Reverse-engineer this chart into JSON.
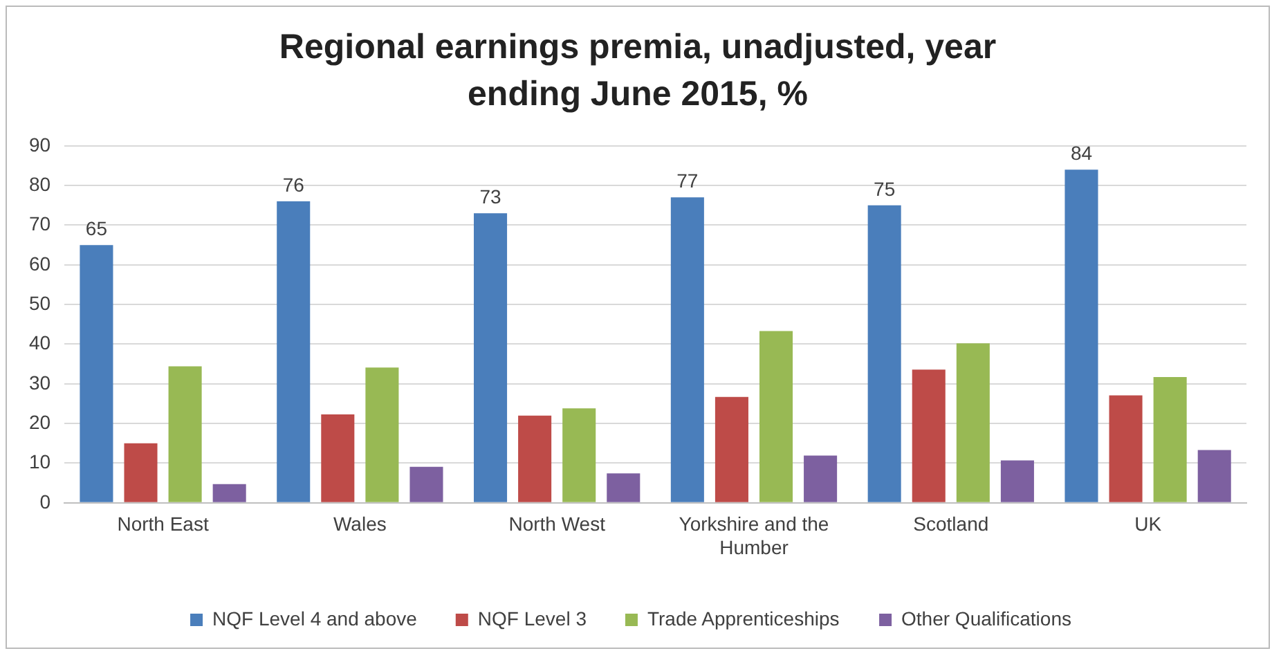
{
  "chart_data": {
    "type": "bar",
    "title": "Regional earnings premia, unadjusted, year ending June 2015, %",
    "categories": [
      "North East",
      "Wales",
      "North West",
      "Yorkshire and the Humber",
      "Scotland",
      "UK"
    ],
    "series": [
      {
        "name": "NQF Level 4 and above",
        "color": "#4a7ebb",
        "values": [
          65,
          76,
          73,
          77,
          75,
          84
        ],
        "value_labels": [
          "65",
          "76",
          "73",
          "77",
          "75",
          "84"
        ]
      },
      {
        "name": "NQF Level 3",
        "color": "#be4b48",
        "values": [
          15,
          22.3,
          22,
          26.7,
          33.6,
          27.1
        ]
      },
      {
        "name": "Trade Apprenticeships",
        "color": "#98b954",
        "values": [
          34.4,
          34.1,
          23.8,
          43.3,
          40.2,
          31.7
        ]
      },
      {
        "name": "Other Qualifications",
        "color": "#7d60a0",
        "values": [
          4.7,
          9.1,
          7.4,
          11.9,
          10.7,
          13.3
        ]
      }
    ],
    "ylim": [
      0,
      90
    ],
    "yticks": [
      0,
      10,
      20,
      30,
      40,
      50,
      60,
      70,
      80,
      90
    ],
    "grid": "y",
    "legend": "bottom"
  }
}
